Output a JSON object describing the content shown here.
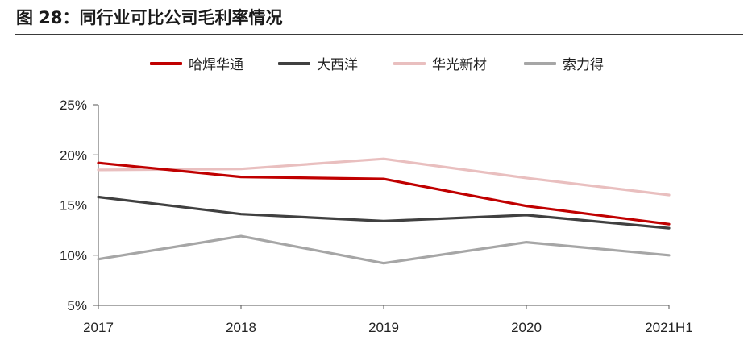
{
  "figure": {
    "title": "图 28：同行业可比公司毛利率情况"
  },
  "chart_data": {
    "type": "line",
    "categories": [
      "2017",
      "2018",
      "2019",
      "2020",
      "2021H1"
    ],
    "series": [
      {
        "name": "哈焊华通",
        "color": "#c00000",
        "values": [
          19.2,
          17.8,
          17.6,
          14.9,
          13.1
        ]
      },
      {
        "name": "大西洋",
        "color": "#404040",
        "values": [
          15.8,
          14.1,
          13.4,
          14.0,
          12.7
        ]
      },
      {
        "name": "华光新材",
        "color": "#e9bfbf",
        "values": [
          18.5,
          18.6,
          19.6,
          17.7,
          16.0
        ]
      },
      {
        "name": "索力得",
        "color": "#a6a6a6",
        "values": [
          9.6,
          11.9,
          9.2,
          11.3,
          10.0
        ]
      }
    ],
    "ylim": [
      5,
      25
    ],
    "yticks": [
      5,
      10,
      15,
      20,
      25
    ],
    "ytick_labels": [
      "5%",
      "10%",
      "15%",
      "20%",
      "25%"
    ],
    "legend_position": "top",
    "grid": false
  }
}
